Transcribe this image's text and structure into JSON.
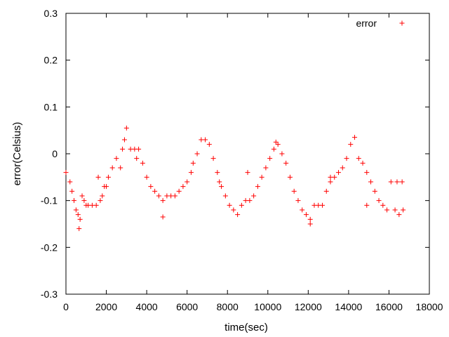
{
  "chart_data": {
    "type": "scatter",
    "xlabel": "time(sec)",
    "ylabel": "error(Celsius)",
    "xlim": [
      0,
      18000
    ],
    "ylim": [
      -0.3,
      0.3
    ],
    "x_ticks": [
      0,
      2000,
      4000,
      6000,
      8000,
      10000,
      12000,
      14000,
      16000,
      18000
    ],
    "y_ticks": [
      -0.3,
      -0.2,
      -0.1,
      0,
      0.1,
      0.2,
      0.3
    ],
    "x_tick_labels": [
      "0",
      "2000",
      "4000",
      "6000",
      "8000",
      "10000",
      "12000",
      "14000",
      "16000",
      "18000"
    ],
    "y_tick_labels": [
      "-0.3",
      "-0.2",
      "-0.1",
      "0",
      "0.1",
      "0.2",
      "0.3"
    ],
    "grid": false,
    "legend_position": "top-right",
    "series": [
      {
        "name": "error",
        "marker": "+",
        "color": "#ff0000",
        "points": [
          [
            0,
            -0.04
          ],
          [
            200,
            -0.06
          ],
          [
            300,
            -0.08
          ],
          [
            400,
            -0.1
          ],
          [
            500,
            -0.12
          ],
          [
            600,
            -0.13
          ],
          [
            650,
            -0.16
          ],
          [
            700,
            -0.14
          ],
          [
            800,
            -0.09
          ],
          [
            900,
            -0.1
          ],
          [
            1000,
            -0.11
          ],
          [
            1100,
            -0.11
          ],
          [
            1300,
            -0.11
          ],
          [
            1500,
            -0.11
          ],
          [
            1600,
            -0.05
          ],
          [
            1700,
            -0.1
          ],
          [
            1800,
            -0.09
          ],
          [
            1900,
            -0.07
          ],
          [
            2100,
            -0.05
          ],
          [
            2300,
            -0.03
          ],
          [
            2500,
            -0.01
          ],
          [
            2700,
            -0.03
          ],
          [
            2800,
            0.01
          ],
          [
            2900,
            0.03
          ],
          [
            3000,
            0.055
          ],
          [
            3200,
            0.01
          ],
          [
            3400,
            0.01
          ],
          [
            3500,
            -0.01
          ],
          [
            3600,
            0.01
          ],
          [
            3800,
            -0.02
          ],
          [
            4000,
            -0.05
          ],
          [
            4200,
            -0.07
          ],
          [
            4400,
            -0.08
          ],
          [
            4600,
            -0.09
          ],
          [
            4800,
            -0.1
          ],
          [
            5000,
            -0.09
          ],
          [
            5200,
            -0.09
          ],
          [
            5400,
            -0.09
          ],
          [
            5600,
            -0.08
          ],
          [
            5800,
            -0.07
          ],
          [
            6000,
            -0.06
          ],
          [
            6200,
            -0.04
          ],
          [
            6300,
            -0.02
          ],
          [
            6500,
            0.0
          ],
          [
            6700,
            0.03
          ],
          [
            6900,
            0.03
          ],
          [
            7100,
            0.02
          ],
          [
            7300,
            -0.01
          ],
          [
            7500,
            -0.04
          ],
          [
            7700,
            -0.07
          ],
          [
            7900,
            -0.09
          ],
          [
            8100,
            -0.11
          ],
          [
            8300,
            -0.12
          ],
          [
            8500,
            -0.13
          ],
          [
            8700,
            -0.11
          ],
          [
            8900,
            -0.1
          ],
          [
            9100,
            -0.1
          ],
          [
            9300,
            -0.09
          ],
          [
            9500,
            -0.07
          ],
          [
            9700,
            -0.05
          ],
          [
            9900,
            -0.03
          ],
          [
            10100,
            -0.01
          ],
          [
            10300,
            0.01
          ],
          [
            10500,
            0.02
          ],
          [
            10700,
            0.0
          ],
          [
            10900,
            -0.02
          ],
          [
            11100,
            -0.05
          ],
          [
            11300,
            -0.08
          ],
          [
            11500,
            -0.1
          ],
          [
            11700,
            -0.12
          ],
          [
            11900,
            -0.13
          ],
          [
            12100,
            -0.15
          ],
          [
            12300,
            -0.11
          ],
          [
            12500,
            -0.11
          ],
          [
            12700,
            -0.11
          ],
          [
            12900,
            -0.08
          ],
          [
            13100,
            -0.06
          ],
          [
            13300,
            -0.05
          ],
          [
            13500,
            -0.04
          ],
          [
            13700,
            -0.03
          ],
          [
            13900,
            -0.01
          ],
          [
            14100,
            0.02
          ],
          [
            14300,
            0.035
          ],
          [
            14500,
            -0.01
          ],
          [
            14700,
            -0.02
          ],
          [
            14900,
            -0.04
          ],
          [
            15100,
            -0.06
          ],
          [
            15300,
            -0.08
          ],
          [
            15500,
            -0.1
          ],
          [
            15700,
            -0.11
          ],
          [
            15900,
            -0.12
          ],
          [
            16100,
            -0.06
          ],
          [
            16300,
            -0.12
          ],
          [
            16500,
            -0.13
          ],
          [
            16650,
            -0.06
          ],
          [
            16700,
            -0.12
          ],
          [
            2000,
            -0.07
          ],
          [
            4800,
            -0.135
          ],
          [
            7600,
            -0.06
          ],
          [
            9000,
            -0.04
          ],
          [
            10400,
            0.025
          ],
          [
            12100,
            -0.14
          ],
          [
            13100,
            -0.05
          ],
          [
            14900,
            -0.11
          ],
          [
            16400,
            -0.06
          ]
        ]
      }
    ]
  }
}
